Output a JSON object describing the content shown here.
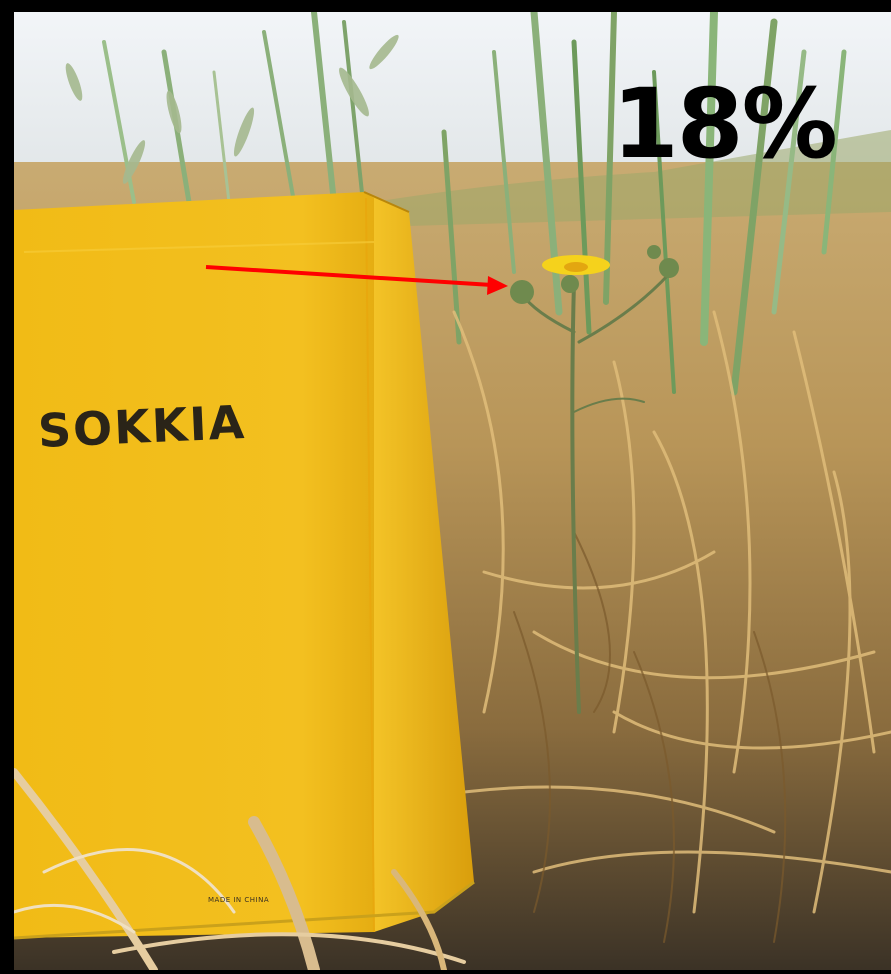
{
  "overlay": {
    "label": "18%"
  },
  "case": {
    "brand": "SOKKIA",
    "fine_print": "MADE IN CHINA"
  },
  "annotation": {
    "arrow_color": "#ff0000",
    "target": "yellow-composite-flower"
  },
  "colors": {
    "frame": "#000000",
    "case_yellow": "#f0b81a",
    "sky": "#e8edf1",
    "dry_grass": "#c9a45c",
    "green_blades": "#7fa366",
    "soil": "#3b3226"
  }
}
